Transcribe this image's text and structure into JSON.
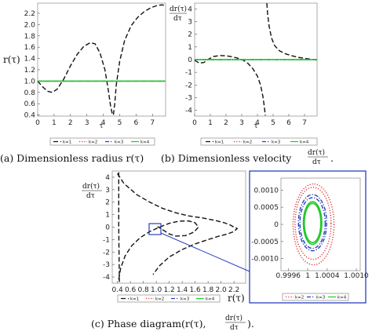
{
  "legend_entries": [
    "k=1",
    "k=2",
    "k=3",
    "k=4"
  ],
  "colors": {
    "k=1": "#111111",
    "k=2": "#e03030",
    "k=3": "#2a3fc0",
    "k=4": "#22c82a",
    "inset_box": "#2a3fc0"
  },
  "chart_data": [
    {
      "id": "a",
      "type": "line",
      "caption": "(a) Dimensionless radius r(τ)",
      "xlabel": "τ",
      "ylabel": "r(τ)",
      "xlim": [
        0,
        7.8
      ],
      "ylim": [
        0.38,
        2.38
      ],
      "xticks": [
        "0",
        "1",
        "2",
        "3",
        "4",
        "5",
        "6",
        "7"
      ],
      "yticks": [
        "0.4",
        "0.6",
        "0.8",
        "1.0",
        "1.2",
        "1.4",
        "1.6",
        "1.8",
        "2.0",
        "2.2"
      ],
      "series": [
        {
          "name": "k=1",
          "style": "dashed",
          "x": [
            0,
            0.3,
            0.6,
            0.9,
            1.2,
            1.6,
            2.0,
            2.4,
            2.8,
            3.2,
            3.5,
            3.8,
            4.1,
            4.3,
            4.45,
            4.55,
            4.62,
            4.7,
            4.8,
            5.0,
            5.3,
            5.7,
            6.1,
            6.5,
            6.9,
            7.3,
            7.6,
            7.8
          ],
          "y": [
            1.0,
            0.9,
            0.82,
            0.8,
            0.86,
            1.04,
            1.27,
            1.47,
            1.61,
            1.68,
            1.66,
            1.5,
            1.2,
            0.85,
            0.55,
            0.42,
            0.4,
            0.6,
            0.95,
            1.35,
            1.72,
            1.98,
            2.13,
            2.23,
            2.3,
            2.34,
            2.35,
            2.33
          ]
        },
        {
          "name": "k=2",
          "style": "dotted",
          "x": [
            0,
            7.8
          ],
          "y": [
            1.0,
            1.0
          ]
        },
        {
          "name": "k=3",
          "style": "dashdot",
          "x": [
            0,
            7.8
          ],
          "y": [
            1.0,
            1.0
          ]
        },
        {
          "name": "k=4",
          "style": "solid",
          "x": [
            0,
            7.8
          ],
          "y": [
            1.0,
            1.0
          ]
        }
      ]
    },
    {
      "id": "b",
      "type": "line",
      "caption": "(b) Dimensionless velocity",
      "caption_frac_num": "dr(τ)",
      "caption_frac_den": "dτ",
      "xlabel": "τ",
      "ylabel_num": "dr(τ)",
      "ylabel_den": "dτ",
      "xlim": [
        0,
        7.8
      ],
      "ylim": [
        -4.45,
        4.45
      ],
      "xticks": [
        "0",
        "1",
        "2",
        "3",
        "4",
        "5",
        "6",
        "7"
      ],
      "yticks": [
        "4",
        "3",
        "2",
        "1",
        "0",
        "-1",
        "-2",
        "-3",
        "-4"
      ],
      "series": [
        {
          "name": "k=1",
          "style": "dashed",
          "x": [
            0,
            0.3,
            0.6,
            0.9,
            1.2,
            1.6,
            2.0,
            2.4,
            2.8,
            3.1,
            3.4,
            3.7,
            4.0,
            4.2,
            4.35,
            4.45,
            4.5
          ],
          "y": [
            -0.05,
            -0.28,
            -0.22,
            0.05,
            0.25,
            0.32,
            0.3,
            0.22,
            0.1,
            -0.05,
            -0.3,
            -0.7,
            -1.3,
            -2.0,
            -2.9,
            -3.8,
            -4.4
          ]
        },
        {
          "name": "k=1",
          "style": "dashed",
          "x": [
            4.6,
            4.65,
            4.75,
            4.9,
            5.1,
            5.4,
            5.8,
            6.2,
            6.6,
            7.0,
            7.4,
            7.8
          ],
          "y": [
            4.45,
            3.6,
            2.6,
            1.7,
            1.1,
            0.7,
            0.45,
            0.3,
            0.18,
            0.1,
            0.03,
            -0.03
          ]
        },
        {
          "name": "k=2",
          "style": "dotted",
          "x": [
            0,
            7.8
          ],
          "y": [
            0,
            0
          ]
        },
        {
          "name": "k=3",
          "style": "dashdot",
          "x": [
            0,
            7.8
          ],
          "y": [
            0,
            0
          ]
        },
        {
          "name": "k=4",
          "style": "solid",
          "x": [
            0,
            7.8
          ],
          "y": [
            0,
            0
          ]
        }
      ]
    },
    {
      "id": "c",
      "type": "line",
      "caption": "(c) Phase diagram",
      "caption_paren": "(r(τ), ",
      "caption_frac_num": "dr(τ)",
      "caption_frac_den": "dτ",
      "caption_end": ").",
      "xlabel": "r(τ)",
      "ylabel_num": "dr(τ)",
      "ylabel_den": "dτ",
      "xlim": [
        0.32,
        2.38
      ],
      "ylim": [
        -4.5,
        4.5
      ],
      "xticks": [
        "0.4",
        "0.6",
        "0.8",
        "1.0",
        "1.2",
        "1.4",
        "1.6",
        "1.8",
        "2.0",
        "2.2"
      ],
      "yticks": [
        "4",
        "3",
        "2",
        "1",
        "0",
        "-1",
        "-2",
        "-3",
        "-4"
      ],
      "series": [
        {
          "name": "k=1",
          "style": "dashed",
          "x": [
            0.4,
            0.5,
            0.7,
            0.9,
            1.1,
            1.3,
            1.5,
            1.7,
            1.9,
            2.05,
            2.15,
            2.2,
            2.25,
            2.2,
            2.1,
            1.95,
            1.8,
            1.6,
            1.4,
            1.2,
            1.05,
            0.95
          ],
          "y": [
            4.3,
            3.5,
            2.6,
            2.0,
            1.5,
            1.15,
            0.9,
            0.75,
            0.55,
            0.35,
            0.15,
            0.0,
            -0.1,
            -0.35,
            -0.55,
            -0.75,
            -1.0,
            -1.35,
            -1.8,
            -2.4,
            -3.1,
            -3.8
          ]
        },
        {
          "name": "k=1",
          "style": "dashed",
          "x": [
            0.42,
            0.45,
            0.52,
            0.62,
            0.75,
            0.9,
            1.05,
            1.2,
            1.35,
            1.5,
            1.6,
            1.65,
            1.58,
            1.45,
            1.3,
            1.2,
            1.12,
            1.05,
            1.02
          ],
          "y": [
            -4.2,
            -3.3,
            -2.3,
            -1.5,
            -0.85,
            -0.35,
            0.0,
            0.3,
            0.48,
            0.5,
            0.35,
            0.0,
            -0.4,
            -0.68,
            -0.72,
            -0.55,
            -0.28,
            -0.05,
            0.05
          ]
        },
        {
          "name": "k=1",
          "style": "dashed",
          "x": [
            0.42,
            0.42,
            0.43
          ],
          "y": [
            4.4,
            0.0,
            -4.4
          ]
        }
      ]
    },
    {
      "id": "c-inset",
      "type": "line",
      "xlim": [
        0.99945,
        1.00108
      ],
      "ylim": [
        -0.00135,
        0.00135
      ],
      "xticks": [
        "0.9996",
        "1",
        "1.0004",
        "1.0010"
      ],
      "yticks": [
        "0.0010",
        "0.0005",
        "0",
        "-0.0005",
        "-0.0010"
      ],
      "series": [
        {
          "name": "k=2",
          "style": "dotted",
          "shape": "ellipse",
          "cx": 1.00012,
          "cy": 0.0,
          "rx": 0.00042,
          "ry": 0.00118
        },
        {
          "name": "k=2",
          "style": "dotted",
          "shape": "ellipse",
          "cx": 1.00011,
          "cy": 3e-05,
          "rx": 0.00037,
          "ry": 0.00105
        },
        {
          "name": "k=3",
          "style": "dashdot",
          "shape": "ellipse",
          "cx": 1.0001,
          "cy": 5e-05,
          "rx": 0.00029,
          "ry": 0.00082
        },
        {
          "name": "k=3",
          "style": "dashdot",
          "shape": "ellipse",
          "cx": 1.0001,
          "cy": 4e-05,
          "rx": 0.00026,
          "ry": 0.00074
        },
        {
          "name": "k=4",
          "style": "solid",
          "shape": "ellipse",
          "cx": 1.0001,
          "cy": 4e-05,
          "rx": 0.00019,
          "ry": 0.00062
        },
        {
          "name": "k=4",
          "style": "solid",
          "shape": "ellipse",
          "cx": 1.0001,
          "cy": 4e-05,
          "rx": 0.00017,
          "ry": 0.00057
        }
      ]
    }
  ]
}
